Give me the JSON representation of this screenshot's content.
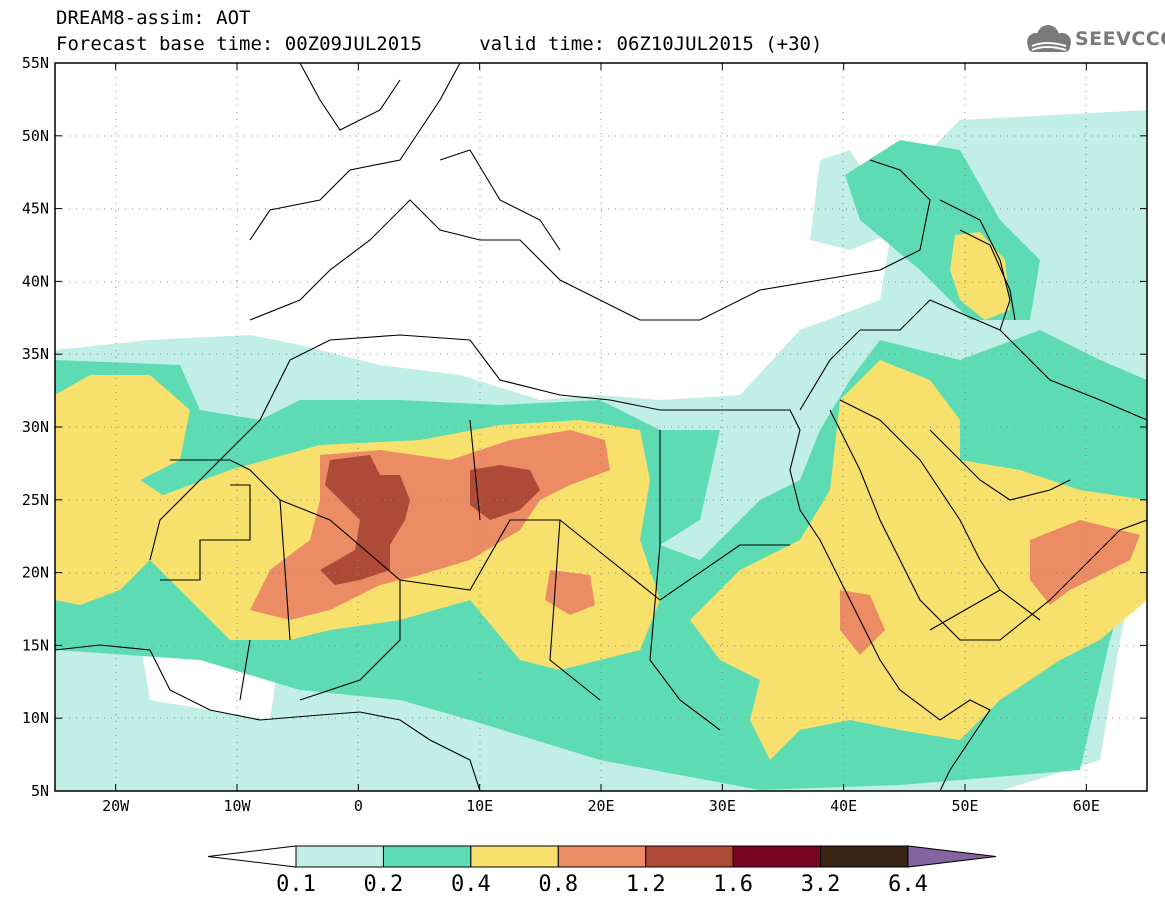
{
  "header": {
    "title_line1": "DREAM8-assim: AOT",
    "title_line2": "Forecast base time: 00Z09JUL2015     valid time: 06Z10JUL2015 (+30)",
    "logo_text": "SEEVCCC"
  },
  "map": {
    "lon_range": [
      -25,
      65
    ],
    "lat_range": [
      5,
      55
    ],
    "lon_ticks": [
      {
        "value": -20,
        "label": "20W"
      },
      {
        "value": -10,
        "label": "10W"
      },
      {
        "value": 0,
        "label": "0"
      },
      {
        "value": 10,
        "label": "10E"
      },
      {
        "value": 20,
        "label": "20E"
      },
      {
        "value": 30,
        "label": "30E"
      },
      {
        "value": 40,
        "label": "40E"
      },
      {
        "value": 50,
        "label": "50E"
      },
      {
        "value": 60,
        "label": "60E"
      }
    ],
    "lat_ticks": [
      {
        "value": 55,
        "label": "55N"
      },
      {
        "value": 50,
        "label": "50N"
      },
      {
        "value": 45,
        "label": "45N"
      },
      {
        "value": 40,
        "label": "40N"
      },
      {
        "value": 35,
        "label": "35N"
      },
      {
        "value": 30,
        "label": "30N"
      },
      {
        "value": 25,
        "label": "25N"
      },
      {
        "value": 20,
        "label": "20N"
      },
      {
        "value": 15,
        "label": "15N"
      },
      {
        "value": 10,
        "label": "10N"
      },
      {
        "value": 5,
        "label": "5N"
      }
    ],
    "grid": "dotted"
  },
  "colorbar": {
    "colors": [
      "#ffffff",
      "#c2eee8",
      "#5ddcb4",
      "#f8e06c",
      "#ec8c64",
      "#b04a38",
      "#7a0424",
      "#3a2414",
      "#8464a0"
    ],
    "labels": [
      "0.1",
      "0.2",
      "0.4",
      "0.8",
      "1.2",
      "1.6",
      "3.2",
      "6.4"
    ]
  }
}
